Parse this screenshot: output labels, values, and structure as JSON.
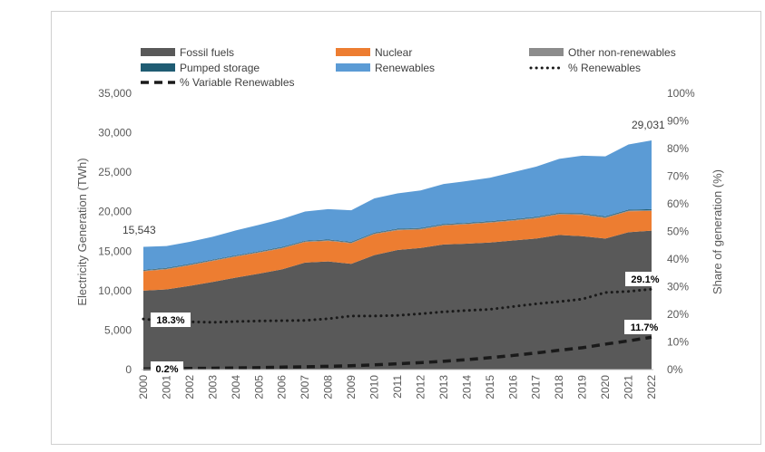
{
  "chart_data": {
    "type": "area",
    "x": [
      2000,
      2001,
      2002,
      2003,
      2004,
      2005,
      2006,
      2007,
      2008,
      2009,
      2010,
      2011,
      2012,
      2013,
      2014,
      2015,
      2016,
      2017,
      2018,
      2019,
      2020,
      2021,
      2022
    ],
    "series": [
      {
        "name": "Fossil fuels",
        "color": "#595959",
        "values": [
          10000,
          10150,
          10600,
          11100,
          11650,
          12150,
          12700,
          13550,
          13700,
          13400,
          14500,
          15150,
          15400,
          15850,
          15950,
          16100,
          16350,
          16600,
          17050,
          16900,
          16600,
          17400,
          17600
        ]
      },
      {
        "name": "Nuclear",
        "color": "#ed7d31",
        "values": [
          2450,
          2550,
          2600,
          2650,
          2650,
          2650,
          2650,
          2600,
          2600,
          2600,
          2650,
          2500,
          2350,
          2400,
          2450,
          2500,
          2500,
          2550,
          2600,
          2700,
          2600,
          2650,
          2500
        ]
      },
      {
        "name": "Other non-renewables",
        "color": "#8c8c8c",
        "values": [
          100,
          100,
          100,
          100,
          100,
          100,
          100,
          100,
          100,
          100,
          110,
          110,
          110,
          110,
          110,
          110,
          110,
          110,
          110,
          110,
          110,
          110,
          110
        ]
      },
      {
        "name": "Pumped storage",
        "color": "#1f5c73",
        "values": [
          80,
          80,
          80,
          80,
          80,
          80,
          80,
          80,
          80,
          80,
          80,
          80,
          80,
          80,
          80,
          80,
          90,
          90,
          90,
          90,
          100,
          100,
          110
        ]
      },
      {
        "name": "Renewables",
        "color": "#5b9bd5",
        "values": [
          2913,
          2770,
          2800,
          2890,
          3150,
          3350,
          3550,
          3700,
          3850,
          4000,
          4350,
          4480,
          4760,
          5070,
          5290,
          5510,
          5950,
          6350,
          6850,
          7300,
          7600,
          8250,
          8711
        ]
      }
    ],
    "line_series": [
      {
        "name": "% Renewables",
        "style": "dotted",
        "values": [
          18.3,
          17.6,
          17.3,
          17.1,
          17.4,
          17.6,
          17.7,
          17.8,
          18.4,
          19.4,
          19.4,
          19.6,
          20.2,
          20.9,
          21.4,
          21.8,
          22.8,
          23.8,
          24.6,
          25.5,
          27.9,
          28.3,
          29.1
        ]
      },
      {
        "name": "% Variable Renewables",
        "style": "dashed",
        "values": [
          0.2,
          0.3,
          0.4,
          0.5,
          0.6,
          0.7,
          0.9,
          1.0,
          1.2,
          1.4,
          1.7,
          2.1,
          2.5,
          3.0,
          3.6,
          4.3,
          5.1,
          6.0,
          7.0,
          7.9,
          9.2,
          10.4,
          11.7
        ]
      }
    ],
    "left_axis": {
      "title": "Electricity Generation (TWh)",
      "range": [
        0,
        35000
      ],
      "ticks": [
        "0",
        "5,000",
        "10,000",
        "15,000",
        "20,000",
        "25,000",
        "30,000",
        "35,000"
      ]
    },
    "right_axis": {
      "title": "Share of generation (%)",
      "range": [
        0,
        100
      ],
      "ticks": [
        "0%",
        "10%",
        "20%",
        "30%",
        "40%",
        "50%",
        "60%",
        "70%",
        "80%",
        "90%",
        "100%"
      ]
    },
    "x_tick_labels": [
      "2000",
      "2001",
      "2002",
      "2003",
      "2004",
      "2005",
      "2006",
      "2007",
      "2008",
      "2009",
      "2010",
      "2011",
      "2012",
      "2013",
      "2014",
      "2015",
      "2016",
      "2017",
      "2018",
      "2019",
      "2020",
      "2021",
      "2022"
    ],
    "annotations": {
      "start_total": "15,543",
      "end_total": "29,031",
      "renew_start": "18.3%",
      "renew_end": "29.1%",
      "vre_start": "0.2%",
      "vre_end": "11.7%"
    },
    "legend_placement": "top",
    "grid": false
  }
}
